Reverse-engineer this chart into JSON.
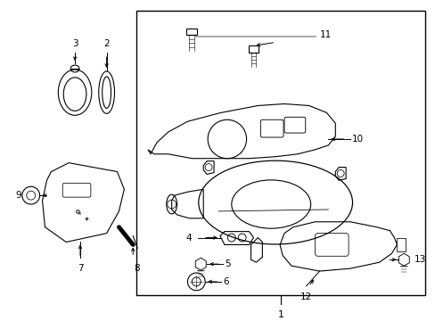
{
  "bg_color": "#ffffff",
  "line_color": "#000000",
  "gray_line_color": "#999999",
  "fig_width": 4.89,
  "fig_height": 3.6,
  "dpi": 100
}
